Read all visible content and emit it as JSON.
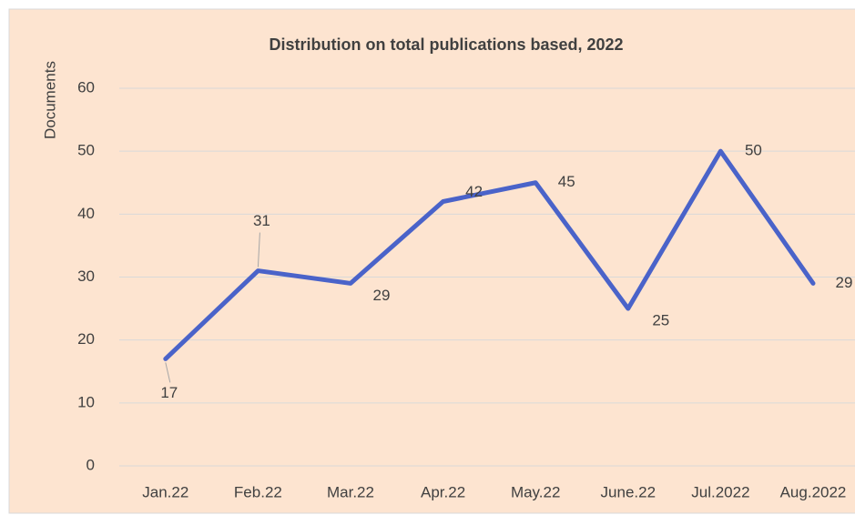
{
  "chart_data": {
    "type": "line",
    "title": "Distribution on  total publications based, 2022",
    "y_label": "Documents",
    "categories": [
      "Jan.22",
      "Feb.22",
      "Mar.22",
      "Apr.22",
      "May.22",
      "June.22",
      "Jul.2022",
      "Aug.2022"
    ],
    "series": [
      {
        "name": "Documents",
        "color": "#4a63c9",
        "values": [
          17,
          31,
          29,
          42,
          45,
          25,
          50,
          29
        ]
      }
    ],
    "ylim": [
      0,
      60
    ],
    "yticks": [
      0,
      10,
      20,
      30,
      40,
      50,
      60
    ],
    "grid": true
  }
}
